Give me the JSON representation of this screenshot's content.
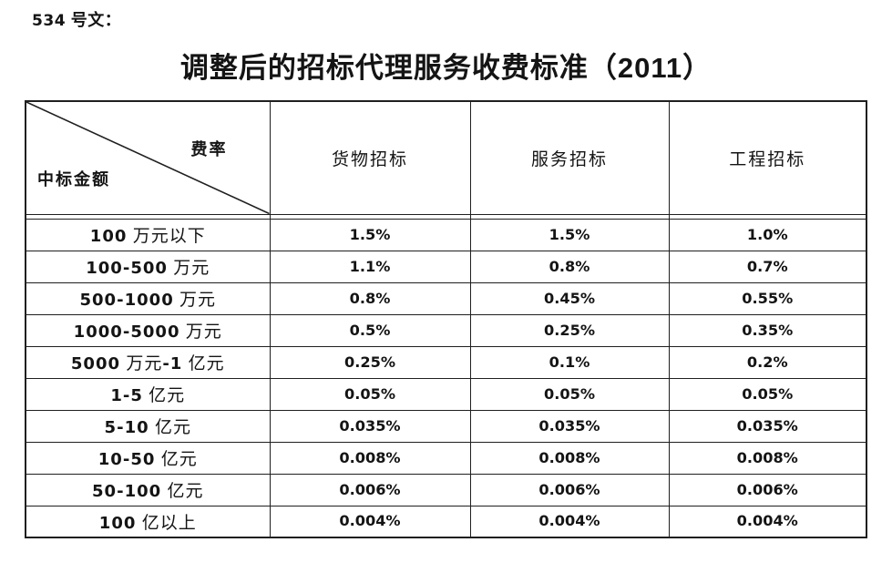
{
  "page": {
    "doc_label": "534 号文：",
    "title": "调整后的招标代理服务收费标准（2011）"
  },
  "table": {
    "corner": {
      "top_right": "费率",
      "bottom_left": "中标金额"
    },
    "columns": [
      "货物招标",
      "服务招标",
      "工程招标"
    ],
    "rows": [
      {
        "label": "100 万元以下",
        "values": [
          "1.5%",
          "1.5%",
          "1.0%"
        ]
      },
      {
        "label": "100-500 万元",
        "values": [
          "1.1%",
          "0.8%",
          "0.7%"
        ]
      },
      {
        "label": "500-1000 万元",
        "values": [
          "0.8%",
          "0.45%",
          "0.55%"
        ]
      },
      {
        "label": "1000-5000 万元",
        "values": [
          "0.5%",
          "0.25%",
          "0.35%"
        ]
      },
      {
        "label": "5000 万元-1 亿元",
        "values": [
          "0.25%",
          "0.1%",
          "0.2%"
        ]
      },
      {
        "label": "1-5 亿元",
        "values": [
          "0.05%",
          "0.05%",
          "0.05%"
        ]
      },
      {
        "label": "5-10 亿元",
        "values": [
          "0.035%",
          "0.035%",
          "0.035%"
        ]
      },
      {
        "label": "10-50 亿元",
        "values": [
          "0.008%",
          "0.008%",
          "0.008%"
        ]
      },
      {
        "label": "50-100 亿元",
        "values": [
          "0.006%",
          "0.006%",
          "0.006%"
        ]
      },
      {
        "label": "100 亿以上",
        "values": [
          "0.004%",
          "0.004%",
          "0.004%"
        ]
      }
    ]
  },
  "colors": {
    "text": "#141414",
    "border": "#1f1f1f",
    "background": "#ffffff"
  }
}
